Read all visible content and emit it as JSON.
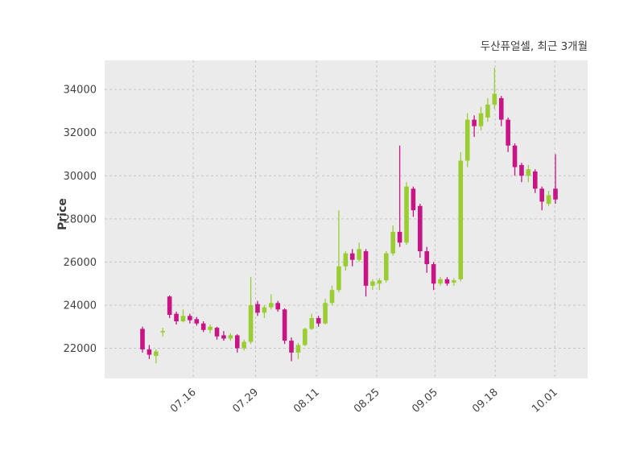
{
  "title": "두산퓨얼셀, 최근 3개월",
  "chart_data": {
    "type": "candlestick",
    "title": "두산퓨얼셀, 최근 3개월",
    "ylabel": "Price",
    "xlabel": "",
    "grid": true,
    "ylim": [
      20600,
      35350
    ],
    "yticks": [
      22000,
      24000,
      26000,
      28000,
      30000,
      32000,
      34000
    ],
    "xticks": {
      "labels": [
        "07.16",
        "07.29",
        "08.11",
        "08.25",
        "09.05",
        "09.18",
        "10.01"
      ],
      "indices": [
        7.5,
        16.7,
        25.7,
        34.6,
        43.2,
        52.1,
        60.9
      ]
    },
    "colors": {
      "up": "#9ACD32",
      "down": "#C71585",
      "plot_bg": "#ebebeb",
      "grid": "#c6c6c6",
      "tick_text": "#434343",
      "title_text": "#3b3b3b"
    },
    "ohlc_format": [
      "open",
      "high",
      "low",
      "close"
    ],
    "candles": [
      [
        22900,
        23000,
        21800,
        21950
      ],
      [
        21950,
        22150,
        21500,
        21700
      ],
      [
        21650,
        21950,
        21300,
        21850
      ],
      [
        22750,
        22950,
        22550,
        22800
      ],
      [
        24400,
        24450,
        23400,
        23550
      ],
      [
        23600,
        23700,
        23100,
        23250
      ],
      [
        23250,
        23800,
        23200,
        23500
      ],
      [
        23500,
        23600,
        23150,
        23300
      ],
      [
        23350,
        23450,
        23050,
        23150
      ],
      [
        23150,
        23250,
        22750,
        22850
      ],
      [
        22850,
        23100,
        22700,
        23000
      ],
      [
        22950,
        23000,
        22400,
        22550
      ],
      [
        22600,
        22800,
        22350,
        22450
      ],
      [
        22450,
        22700,
        22350,
        22600
      ],
      [
        22600,
        22650,
        21800,
        22000
      ],
      [
        22000,
        22400,
        21900,
        22300
      ],
      [
        22300,
        25300,
        22200,
        24000
      ],
      [
        24050,
        24200,
        23500,
        23650
      ],
      [
        23650,
        24000,
        23400,
        23900
      ],
      [
        23900,
        24500,
        23800,
        24100
      ],
      [
        24100,
        24200,
        23700,
        23800
      ],
      [
        23800,
        23850,
        22200,
        22350
      ],
      [
        22350,
        22500,
        21400,
        21800
      ],
      [
        21800,
        22250,
        21500,
        22150
      ],
      [
        22150,
        22950,
        22100,
        22900
      ],
      [
        22900,
        23600,
        22850,
        23400
      ],
      [
        23400,
        23500,
        23000,
        23150
      ],
      [
        23150,
        24300,
        23100,
        24100
      ],
      [
        24100,
        24900,
        24000,
        24700
      ],
      [
        24700,
        28400,
        24600,
        25800
      ],
      [
        25800,
        26500,
        25600,
        26400
      ],
      [
        26400,
        26600,
        25800,
        26100
      ],
      [
        26100,
        26900,
        26000,
        26600
      ],
      [
        26500,
        26600,
        24400,
        24900
      ],
      [
        24900,
        25200,
        24700,
        25100
      ],
      [
        25000,
        25250,
        24700,
        25150
      ],
      [
        25150,
        26500,
        25050,
        26400
      ],
      [
        26400,
        27700,
        26300,
        27400
      ],
      [
        27400,
        31400,
        26700,
        26900
      ],
      [
        26900,
        29700,
        26800,
        29500
      ],
      [
        29400,
        29500,
        28100,
        28400
      ],
      [
        28600,
        28700,
        26200,
        26500
      ],
      [
        26500,
        26700,
        25500,
        25900
      ],
      [
        25900,
        26000,
        24700,
        25000
      ],
      [
        25000,
        25300,
        24900,
        25200
      ],
      [
        25200,
        25300,
        24900,
        25000
      ],
      [
        25050,
        25250,
        24900,
        25150
      ],
      [
        25200,
        31100,
        25100,
        30700
      ],
      [
        30700,
        32900,
        30400,
        32600
      ],
      [
        32600,
        32800,
        31800,
        32300
      ],
      [
        32300,
        33200,
        32100,
        32900
      ],
      [
        32700,
        33600,
        32500,
        33300
      ],
      [
        33300,
        35000,
        33100,
        33800
      ],
      [
        33600,
        33700,
        32300,
        32600
      ],
      [
        32600,
        32700,
        31100,
        31400
      ],
      [
        31400,
        31500,
        30000,
        30400
      ],
      [
        30500,
        30600,
        29700,
        30000
      ],
      [
        30000,
        30500,
        29700,
        30300
      ],
      [
        30200,
        30300,
        29200,
        29400
      ],
      [
        29400,
        29500,
        28400,
        28800
      ],
      [
        28700,
        29300,
        28600,
        29100
      ],
      [
        29400,
        31000,
        28700,
        28900
      ]
    ]
  }
}
